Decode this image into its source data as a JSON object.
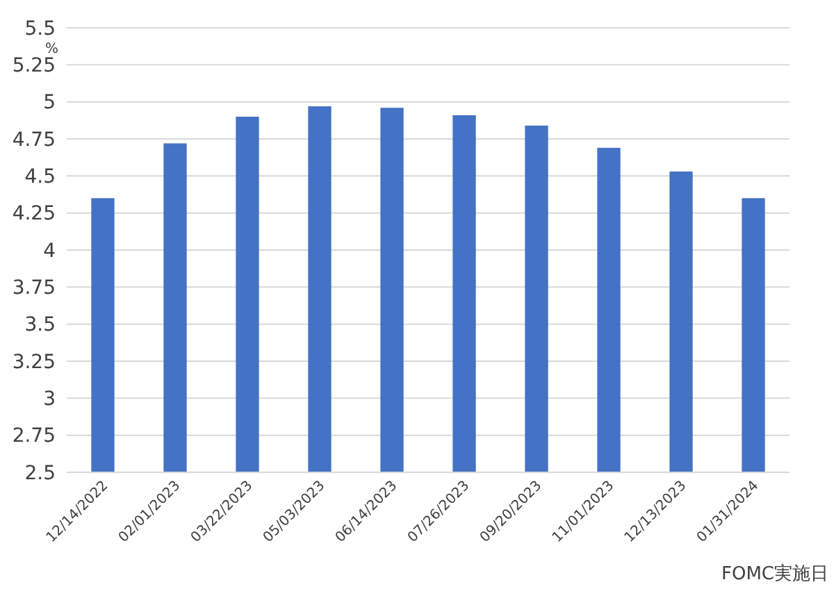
{
  "chart_data": {
    "type": "bar",
    "ylabel": "%",
    "xlabel": "FOMC実施日",
    "categories": [
      "12/14/2022",
      "02/01/2023",
      "03/22/2023",
      "05/03/2023",
      "06/14/2023",
      "07/26/2023",
      "09/20/2023",
      "11/01/2023",
      "12/13/2023",
      "01/31/2024"
    ],
    "values": [
      4.35,
      4.72,
      4.9,
      4.97,
      4.96,
      4.91,
      4.84,
      4.69,
      4.53,
      4.35
    ],
    "color": "#4472c4",
    "ylim": [
      2.5,
      5.5
    ],
    "yticks": [
      2.5,
      2.75,
      3,
      3.25,
      3.5,
      3.75,
      4,
      4.25,
      4.5,
      4.75,
      5,
      5.25,
      5.5
    ],
    "grid": "y"
  }
}
